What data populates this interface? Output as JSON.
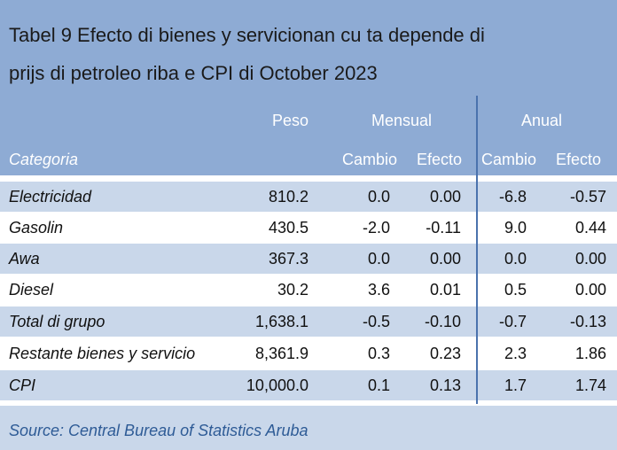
{
  "title_line1": "Tabel 9 Efecto di bienes y servicionan cu ta depende di",
  "title_line2": "prijs di petroleo riba e CPI di October 2023",
  "headers": {
    "peso": "Peso",
    "mensual": "Mensual",
    "anual": "Anual",
    "categoria": "Categoria",
    "m_cambio": "Cambio",
    "m_efecto": "Efecto",
    "a_cambio": "Cambio",
    "a_efecto": "Efecto"
  },
  "rows": [
    {
      "cat": "Electricidad",
      "peso": "810.2",
      "mc": "0.0",
      "me": "0.00",
      "ac": "-6.8",
      "ae": "-0.57"
    },
    {
      "cat": "Gasolin",
      "peso": "430.5",
      "mc": "-2.0",
      "me": "-0.11",
      "ac": "9.0",
      "ae": "0.44"
    },
    {
      "cat": "Awa",
      "peso": "367.3",
      "mc": "0.0",
      "me": "0.00",
      "ac": "0.0",
      "ae": "0.00"
    },
    {
      "cat": "Diesel",
      "peso": "30.2",
      "mc": "3.6",
      "me": "0.01",
      "ac": "0.5",
      "ae": "0.00"
    },
    {
      "cat": "Total di grupo",
      "peso": "1,638.1",
      "mc": "-0.5",
      "me": "-0.10",
      "ac": "-0.7",
      "ae": "-0.13"
    },
    {
      "cat": "Restante bienes y servicio",
      "peso": "8,361.9",
      "mc": "0.3",
      "me": "0.23",
      "ac": "2.3",
      "ae": "1.86"
    },
    {
      "cat": "CPI",
      "peso": "10,000.0",
      "mc": "0.1",
      "me": "0.13",
      "ac": "1.7",
      "ae": "1.74"
    }
  ],
  "source": "Source: Central Bureau of Statistics Aruba"
}
